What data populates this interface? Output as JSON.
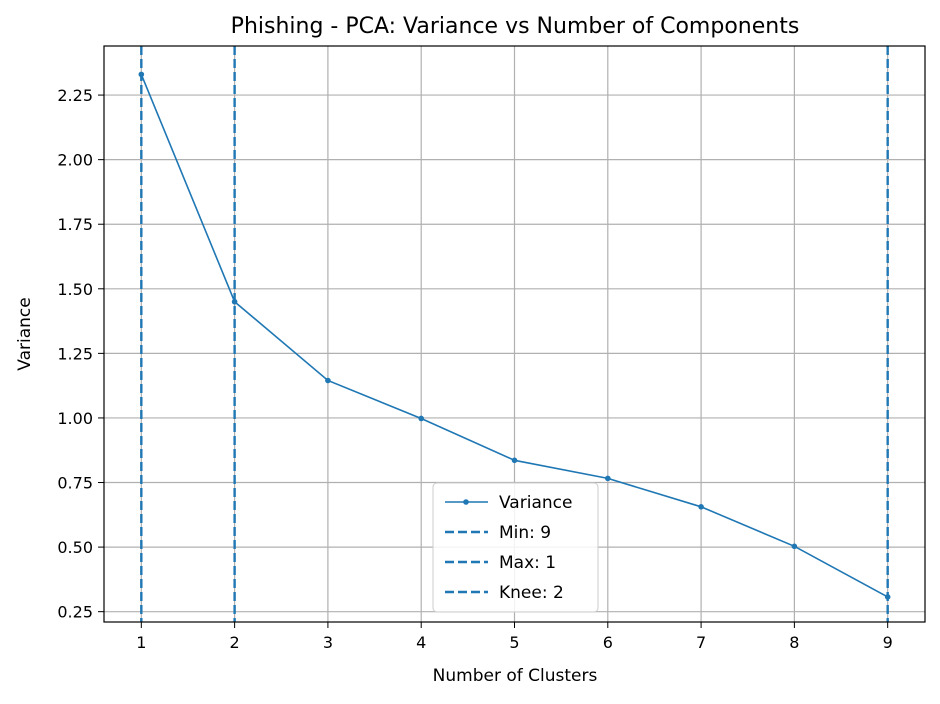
{
  "chart_data": {
    "type": "line",
    "title": "Phishing - PCA: Variance vs Number of Components",
    "xlabel": "Number of Clusters",
    "ylabel": "Variance",
    "x": [
      1,
      2,
      3,
      4,
      5,
      6,
      7,
      8,
      9
    ],
    "xlim": [
      0.6,
      9.4
    ],
    "ylim": [
      0.21,
      2.44
    ],
    "xticks": [
      "1",
      "2",
      "3",
      "4",
      "5",
      "6",
      "7",
      "8",
      "9"
    ],
    "yticks": [
      "0.25",
      "0.50",
      "0.75",
      "1.00",
      "1.25",
      "1.50",
      "1.75",
      "2.00",
      "2.25"
    ],
    "grid": true,
    "legend_position": "bottom-center",
    "series": [
      {
        "name": "Variance",
        "values": [
          2.33,
          1.45,
          1.145,
          0.998,
          0.836,
          0.766,
          0.656,
          0.503,
          0.307
        ],
        "color": "#1f77b4",
        "marker": "circle"
      }
    ],
    "vlines": [
      {
        "label": "Min: 9",
        "x": 9,
        "color": "#1f77b4",
        "style": "dashed"
      },
      {
        "label": "Max: 1",
        "x": 1,
        "color": "#1f77b4",
        "style": "dashed"
      },
      {
        "label": "Knee: 2",
        "x": 2,
        "color": "#1f77b4",
        "style": "dashed"
      }
    ]
  }
}
